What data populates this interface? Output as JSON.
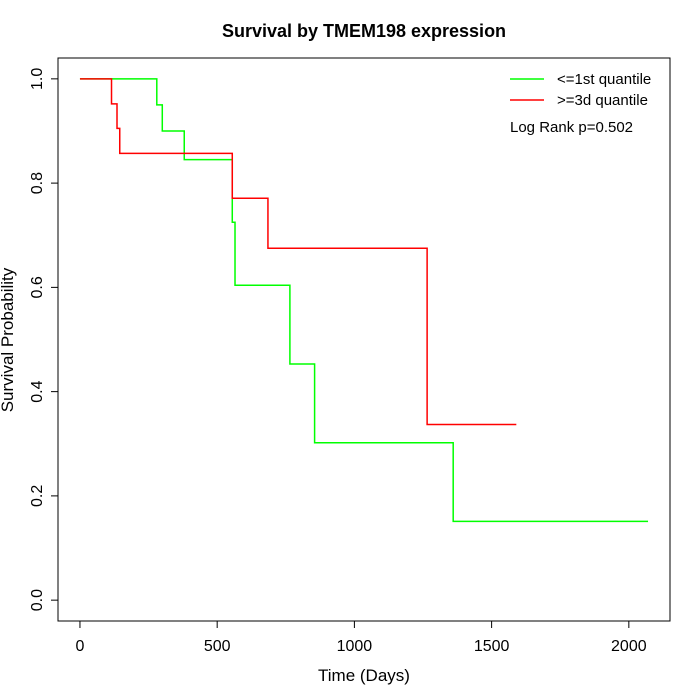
{
  "chart_data": {
    "type": "line",
    "title": "Survival by TMEM198 expression",
    "xlabel": "Time (Days)",
    "ylabel": "Survival Probability",
    "xlim": [
      -80,
      2150
    ],
    "ylim": [
      -0.04,
      1.04
    ],
    "x_ticks": [
      0,
      500,
      1000,
      1500,
      2000
    ],
    "y_ticks": [
      0.0,
      0.2,
      0.4,
      0.6,
      0.8,
      1.0
    ],
    "x_tick_labels": [
      "0",
      "500",
      "1000",
      "1500",
      "2000"
    ],
    "y_tick_labels": [
      "0.0",
      "0.2",
      "0.4",
      "0.6",
      "0.8",
      "1.0"
    ],
    "grid": false,
    "legend_position": "top-right",
    "annotation": "Log Rank p=0.502",
    "series": [
      {
        "name": "<=1st quantile",
        "color": "#00ff00",
        "step": true,
        "x": [
          0,
          280,
          300,
          380,
          555,
          565,
          765,
          855,
          1360,
          2070
        ],
        "y": [
          1.0,
          0.95,
          0.9,
          0.845,
          0.725,
          0.604,
          0.453,
          0.302,
          0.151,
          0.151
        ]
      },
      {
        "name": ">=3d quantile",
        "color": "#ff0000",
        "step": true,
        "x": [
          0,
          115,
          135,
          145,
          555,
          685,
          1265,
          1590
        ],
        "y": [
          1.0,
          0.952,
          0.905,
          0.857,
          0.771,
          0.675,
          0.337,
          0.337
        ]
      }
    ]
  }
}
